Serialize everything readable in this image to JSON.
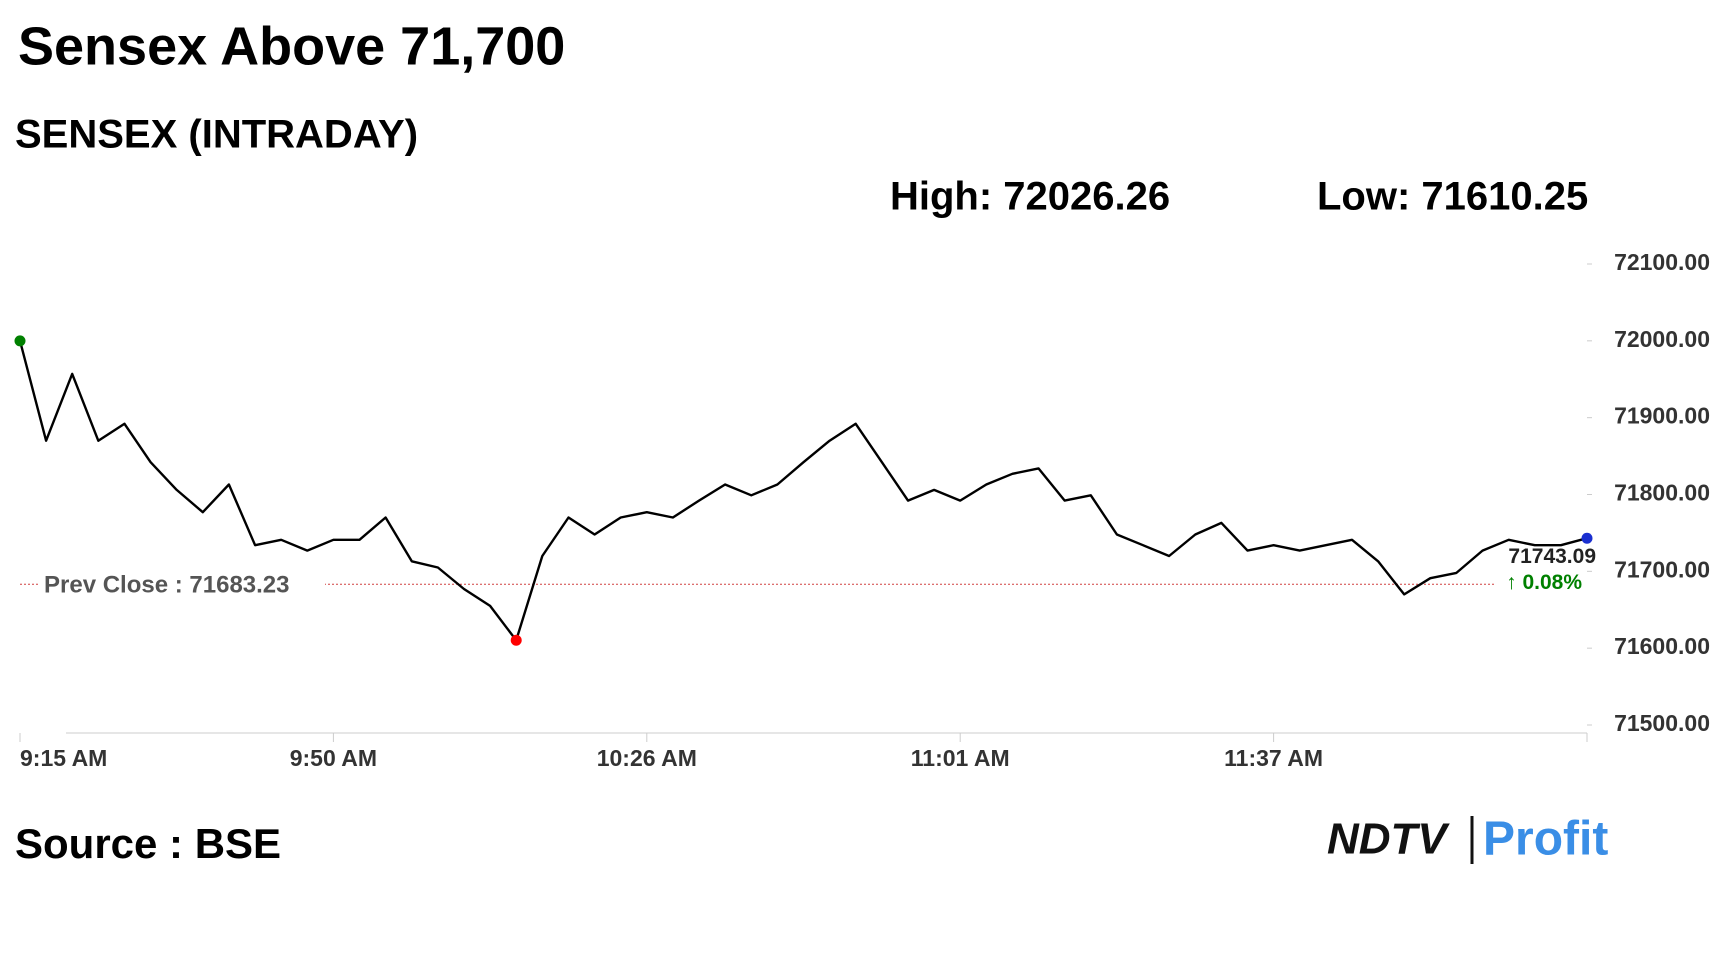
{
  "chart_data": {
    "type": "line",
    "title": "Sensex Above 71,700",
    "subtitle": "SENSEX (INTRADAY)",
    "high_label": "High: 72026.26",
    "low_label": "Low: 71610.25",
    "source": "Source : BSE",
    "logo": [
      "NDTV",
      "Profit"
    ],
    "prev_close": 71683.23,
    "prev_close_label": "Prev Close : 71683.23",
    "last_label": "71743.09",
    "change_label": "↑ 0.08%",
    "color": "#000000",
    "categories": [
      "9:15 AM",
      null,
      null,
      null,
      null,
      null,
      null,
      null,
      null,
      null,
      null,
      null,
      "9:50 AM",
      null,
      null,
      null,
      null,
      null,
      null,
      null,
      null,
      null,
      null,
      null,
      "10:26 AM",
      null,
      null,
      null,
      null,
      null,
      null,
      null,
      null,
      null,
      null,
      null,
      "11:01 AM",
      null,
      null,
      null,
      null,
      null,
      null,
      null,
      null,
      null,
      null,
      null,
      "11:37 AM",
      null,
      null,
      null,
      null,
      null,
      null,
      null,
      null,
      null,
      null,
      null,
      null
    ],
    "values": [
      72000,
      71870,
      71957,
      71870,
      71892,
      71842,
      71806,
      71777,
      71813,
      71734,
      71741,
      71727,
      71741,
      71741,
      71770,
      71713,
      71705,
      71677,
      71655,
      71610.25,
      71720,
      71770,
      71748,
      71770,
      71777,
      71770,
      71792,
      71813,
      71799,
      71813,
      71842,
      71870,
      71892,
      71842,
      71792,
      71806,
      71792,
      71813,
      71827,
      71834,
      71792,
      71799,
      71748,
      71734,
      71720,
      71748,
      71763,
      71727,
      71734,
      71727,
      71734,
      71741,
      71713,
      71670,
      71691,
      71698,
      71727,
      71741,
      71734,
      71734,
      71743.09
    ],
    "ylim": [
      71500,
      72100
    ],
    "yticks": [
      {
        "value": 71500,
        "label": "71500.00"
      },
      {
        "value": 71600,
        "label": "71600.00"
      },
      {
        "value": 71700,
        "label": "71700.00"
      },
      {
        "value": 71800,
        "label": "71800.00"
      },
      {
        "value": 71900,
        "label": "71900.00"
      },
      {
        "value": 72000,
        "label": "72000.00"
      },
      {
        "value": 72100,
        "label": "72100.00"
      }
    ]
  }
}
